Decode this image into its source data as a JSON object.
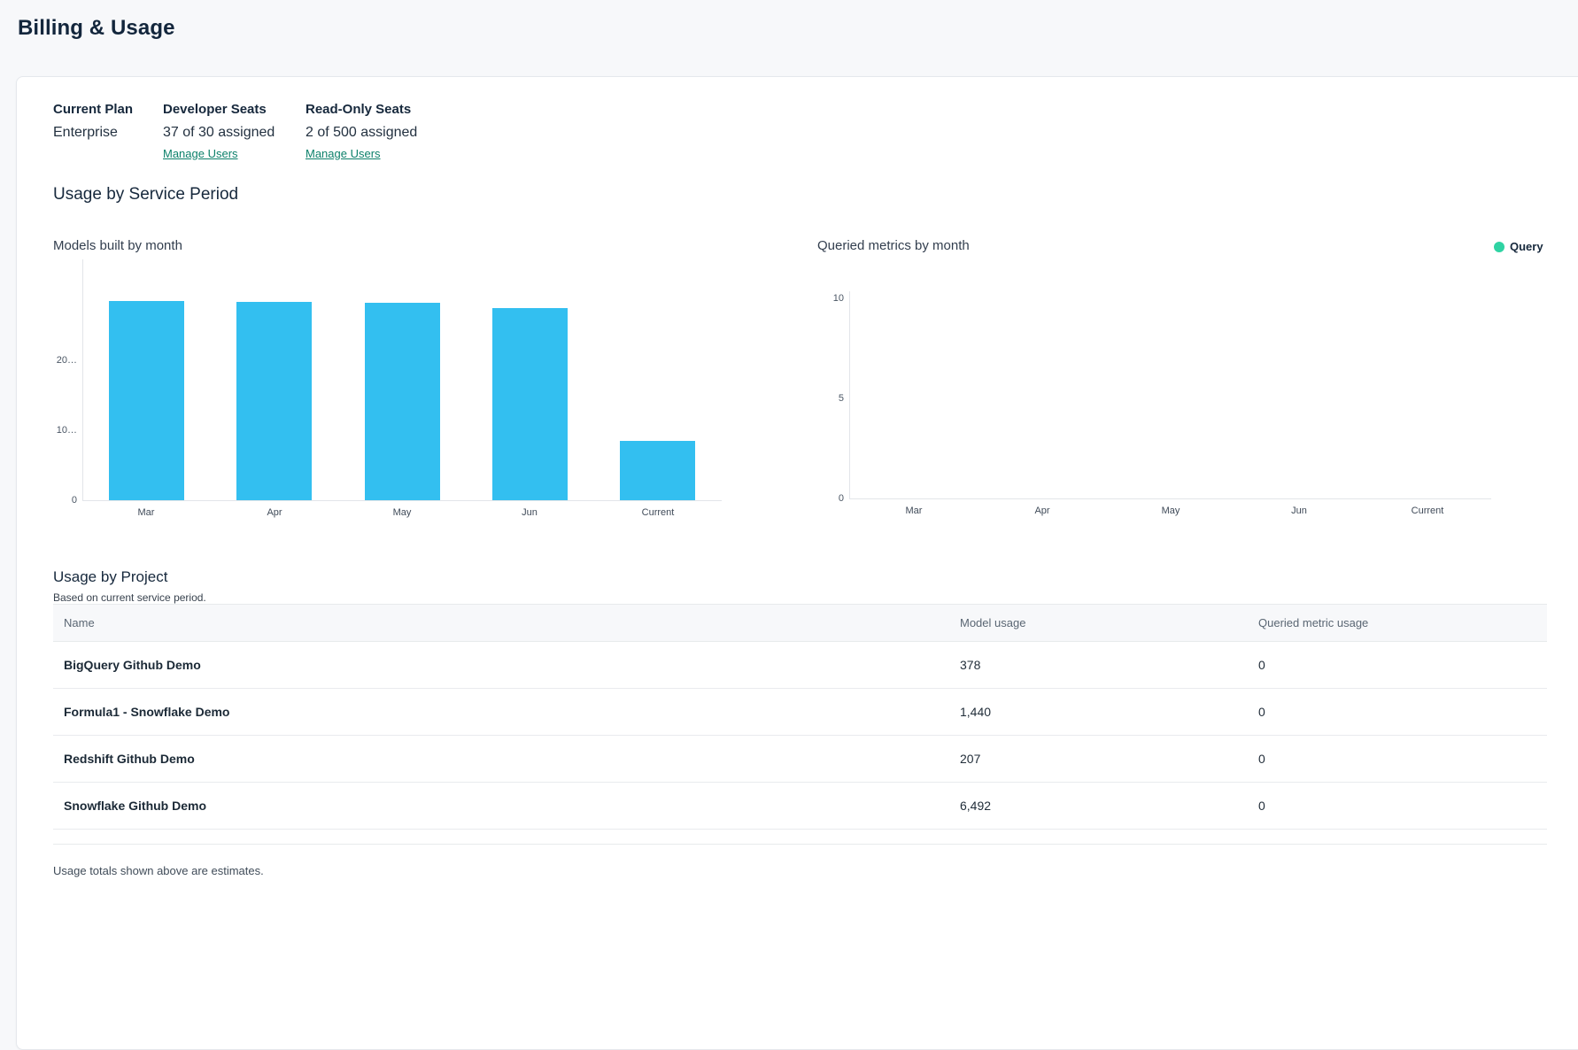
{
  "page": {
    "title": "Billing & Usage"
  },
  "plan": {
    "current_plan": {
      "label": "Current Plan",
      "value": "Enterprise"
    },
    "developer_seats": {
      "label": "Developer Seats",
      "value": "37 of 30 assigned",
      "link": "Manage Users"
    },
    "readonly_seats": {
      "label": "Read-Only Seats",
      "value": "2 of 500 assigned",
      "link": "Manage Users"
    }
  },
  "usage_section": {
    "title": "Usage by Service Period"
  },
  "chart_data": [
    {
      "type": "bar",
      "title": "Models built by month",
      "categories": [
        "Mar",
        "Apr",
        "May",
        "Jun",
        "Current"
      ],
      "values": [
        28500,
        28400,
        28200,
        27400,
        8517
      ],
      "xlabel": "",
      "ylabel": "",
      "ylim": [
        0,
        33400
      ],
      "yticks": [
        {
          "value": 0,
          "label": "0"
        },
        {
          "value": 10000,
          "label": "10…"
        },
        {
          "value": 20000,
          "label": "20…"
        }
      ],
      "grid": false,
      "bar_color": "#33bff0"
    },
    {
      "type": "bar",
      "title": "Queried metrics by month",
      "categories": [
        "Mar",
        "Apr",
        "May",
        "Jun",
        "Current"
      ],
      "values": [
        0,
        0,
        0,
        0,
        0
      ],
      "xlabel": "",
      "ylabel": "",
      "ylim": [
        0,
        10
      ],
      "yticks": [
        {
          "value": 0,
          "label": "0"
        },
        {
          "value": 5,
          "label": "5"
        },
        {
          "value": 10,
          "label": "10"
        }
      ],
      "grid": false,
      "bar_color": "#2fd3a3",
      "legend": [
        {
          "label": "Query",
          "color": "#2fd3a3"
        }
      ],
      "legend_position": "top-right"
    }
  ],
  "project_usage": {
    "title": "Usage by Project",
    "subtitle": "Based on current service period.",
    "columns": [
      "Name",
      "Model usage",
      "Queried metric usage"
    ],
    "rows": [
      {
        "name": "BigQuery Github Demo",
        "model_usage": "378",
        "queried_metric_usage": "0"
      },
      {
        "name": "Formula1 - Snowflake Demo",
        "model_usage": "1,440",
        "queried_metric_usage": "0"
      },
      {
        "name": "Redshift Github Demo",
        "model_usage": "207",
        "queried_metric_usage": "0"
      },
      {
        "name": "Snowflake Github Demo",
        "model_usage": "6,492",
        "queried_metric_usage": "0"
      }
    ],
    "footer_note": "Usage totals shown above are estimates."
  }
}
